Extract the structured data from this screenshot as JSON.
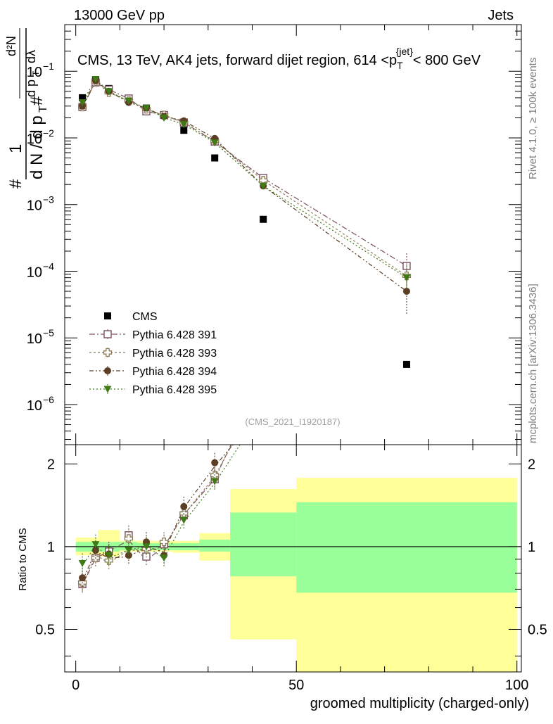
{
  "header": {
    "left": "13000 GeV pp",
    "right": "Jets"
  },
  "side_labels": {
    "rivet": "Rivet 4.1.0, ≥ 100k events",
    "mcplots": "mcplots.cern.ch [arXiv:1306.3436]"
  },
  "colors": {
    "data": "#000000",
    "p391": "#7b4f5e",
    "p393": "#8a7a55",
    "p394": "#5c3e24",
    "p395": "#3f7a16",
    "band_stat": "#99ff99",
    "band_tot": "#ffff99"
  },
  "chart_data": [
    {
      "type": "scatter",
      "title": "CMS, 13 TeV, AK4 jets, forward dijet region, 614 <p_T^{jet}< 800 GeV",
      "title_parts": {
        "main": "CMS, 13 TeV, AK4 jets, forward dijet region, 614 <p",
        "sub": "T",
        "sup": "{jet}",
        "tail": "< 800 GeV"
      },
      "ylabel": "1/N dN/dp_T dλ",
      "ylabel_parts": {
        "hash": "#",
        "one": "1",
        "dn": "d N / d p",
        "t": "T",
        "d2n": "d²N",
        "dpt": "d p",
        "dlam": "dλ"
      },
      "yscale": "log",
      "ylim": [
        2.5e-07,
        0.5
      ],
      "yticks": [
        {
          "v": 1e-06,
          "label": "10",
          "exp": "−6"
        },
        {
          "v": 1e-05,
          "label": "10",
          "exp": "−5"
        },
        {
          "v": 0.0001,
          "label": "10",
          "exp": "−4"
        },
        {
          "v": 0.001,
          "label": "10",
          "exp": "−3"
        },
        {
          "v": 0.01,
          "label": "10",
          "exp": "−2"
        },
        {
          "v": 0.1,
          "label": "10",
          "exp": "−1"
        }
      ],
      "watermark": "(CMS_2021_I1920187)",
      "legend_position": "bottom-left",
      "x": [
        1.5,
        4.5,
        7.5,
        12,
        16,
        20,
        24.5,
        31.5,
        42.5,
        75
      ],
      "series": [
        {
          "name": "CMS",
          "marker": "square-filled",
          "values": [
            0.04,
            0.075,
            0.055,
            0.037,
            0.028,
            0.022,
            0.013,
            0.005,
            0.0006,
            4e-06
          ]
        },
        {
          "name": "Pythia 6.428 391",
          "marker": "square-open",
          "values": [
            0.029,
            0.068,
            0.053,
            0.039,
            0.025,
            0.022,
            0.017,
            0.0088,
            0.0025,
            0.00012
          ]
        },
        {
          "name": "Pythia 6.428 393",
          "marker": "cross-open",
          "values": [
            0.029,
            0.07,
            0.048,
            0.036,
            0.027,
            0.022,
            0.017,
            0.009,
            0.0023,
            8.5e-05
          ]
        },
        {
          "name": "Pythia 6.428 394",
          "marker": "circle-filled",
          "values": [
            0.03,
            0.072,
            0.05,
            0.034,
            0.028,
            0.021,
            0.018,
            0.0098,
            0.0019,
            5e-05
          ]
        },
        {
          "name": "Pythia 6.428 395",
          "marker": "triangle-down-filled",
          "values": [
            0.034,
            0.076,
            0.05,
            0.036,
            0.028,
            0.02,
            0.016,
            0.0085,
            0.0019,
            8e-05
          ]
        }
      ]
    },
    {
      "type": "scatter",
      "ylabel": "Ratio to CMS",
      "xlabel": "groomed multiplicity (charged-only)",
      "yscale": "log",
      "ylim": [
        0.35,
        2.35
      ],
      "xlim": [
        -2.5,
        101
      ],
      "yticks": [
        0.5,
        1,
        2
      ],
      "xticks": [
        0,
        50,
        100
      ],
      "reference": 1,
      "bands": [
        {
          "x0": 0,
          "x1": 5,
          "stat": [
            0.96,
            1.04
          ],
          "tot": [
            0.93,
            1.08
          ]
        },
        {
          "x0": 5,
          "x1": 10,
          "stat": [
            0.96,
            1.04
          ],
          "tot": [
            0.92,
            1.15
          ]
        },
        {
          "x0": 10,
          "x1": 14,
          "stat": [
            0.97,
            1.04
          ],
          "tot": [
            0.96,
            1.05
          ]
        },
        {
          "x0": 14,
          "x1": 22,
          "stat": [
            0.97,
            1.03
          ],
          "tot": [
            0.96,
            1.05
          ]
        },
        {
          "x0": 22,
          "x1": 28,
          "stat": [
            0.97,
            1.03
          ],
          "tot": [
            0.95,
            1.05
          ]
        },
        {
          "x0": 28,
          "x1": 35,
          "stat": [
            0.96,
            1.06
          ],
          "tot": [
            0.89,
            1.12
          ]
        },
        {
          "x0": 35,
          "x1": 50,
          "stat": [
            0.78,
            1.33
          ],
          "tot": [
            0.46,
            1.62
          ]
        },
        {
          "x0": 50,
          "x1": 100,
          "stat": [
            0.68,
            1.45
          ],
          "tot": [
            0.35,
            1.78
          ]
        }
      ],
      "x": [
        1.5,
        4.5,
        7.5,
        12,
        16,
        20,
        24.5,
        31.5
      ],
      "series": [
        {
          "name": "Pythia 6.428 391",
          "values": [
            0.73,
            0.91,
            0.96,
            1.1,
            0.92,
            1.02,
            1.3,
            1.76
          ]
        },
        {
          "name": "Pythia 6.428 393",
          "values": [
            0.74,
            0.91,
            0.89,
            1.07,
            0.98,
            1.04,
            1.32,
            1.82
          ]
        },
        {
          "name": "Pythia 6.428 394",
          "values": [
            0.77,
            0.97,
            0.94,
            0.93,
            1.04,
            0.93,
            1.4,
            2.02
          ]
        },
        {
          "name": "Pythia 6.428 395",
          "values": [
            0.87,
            1.02,
            0.93,
            0.97,
            1.0,
            0.91,
            1.25,
            1.73
          ]
        }
      ]
    }
  ]
}
